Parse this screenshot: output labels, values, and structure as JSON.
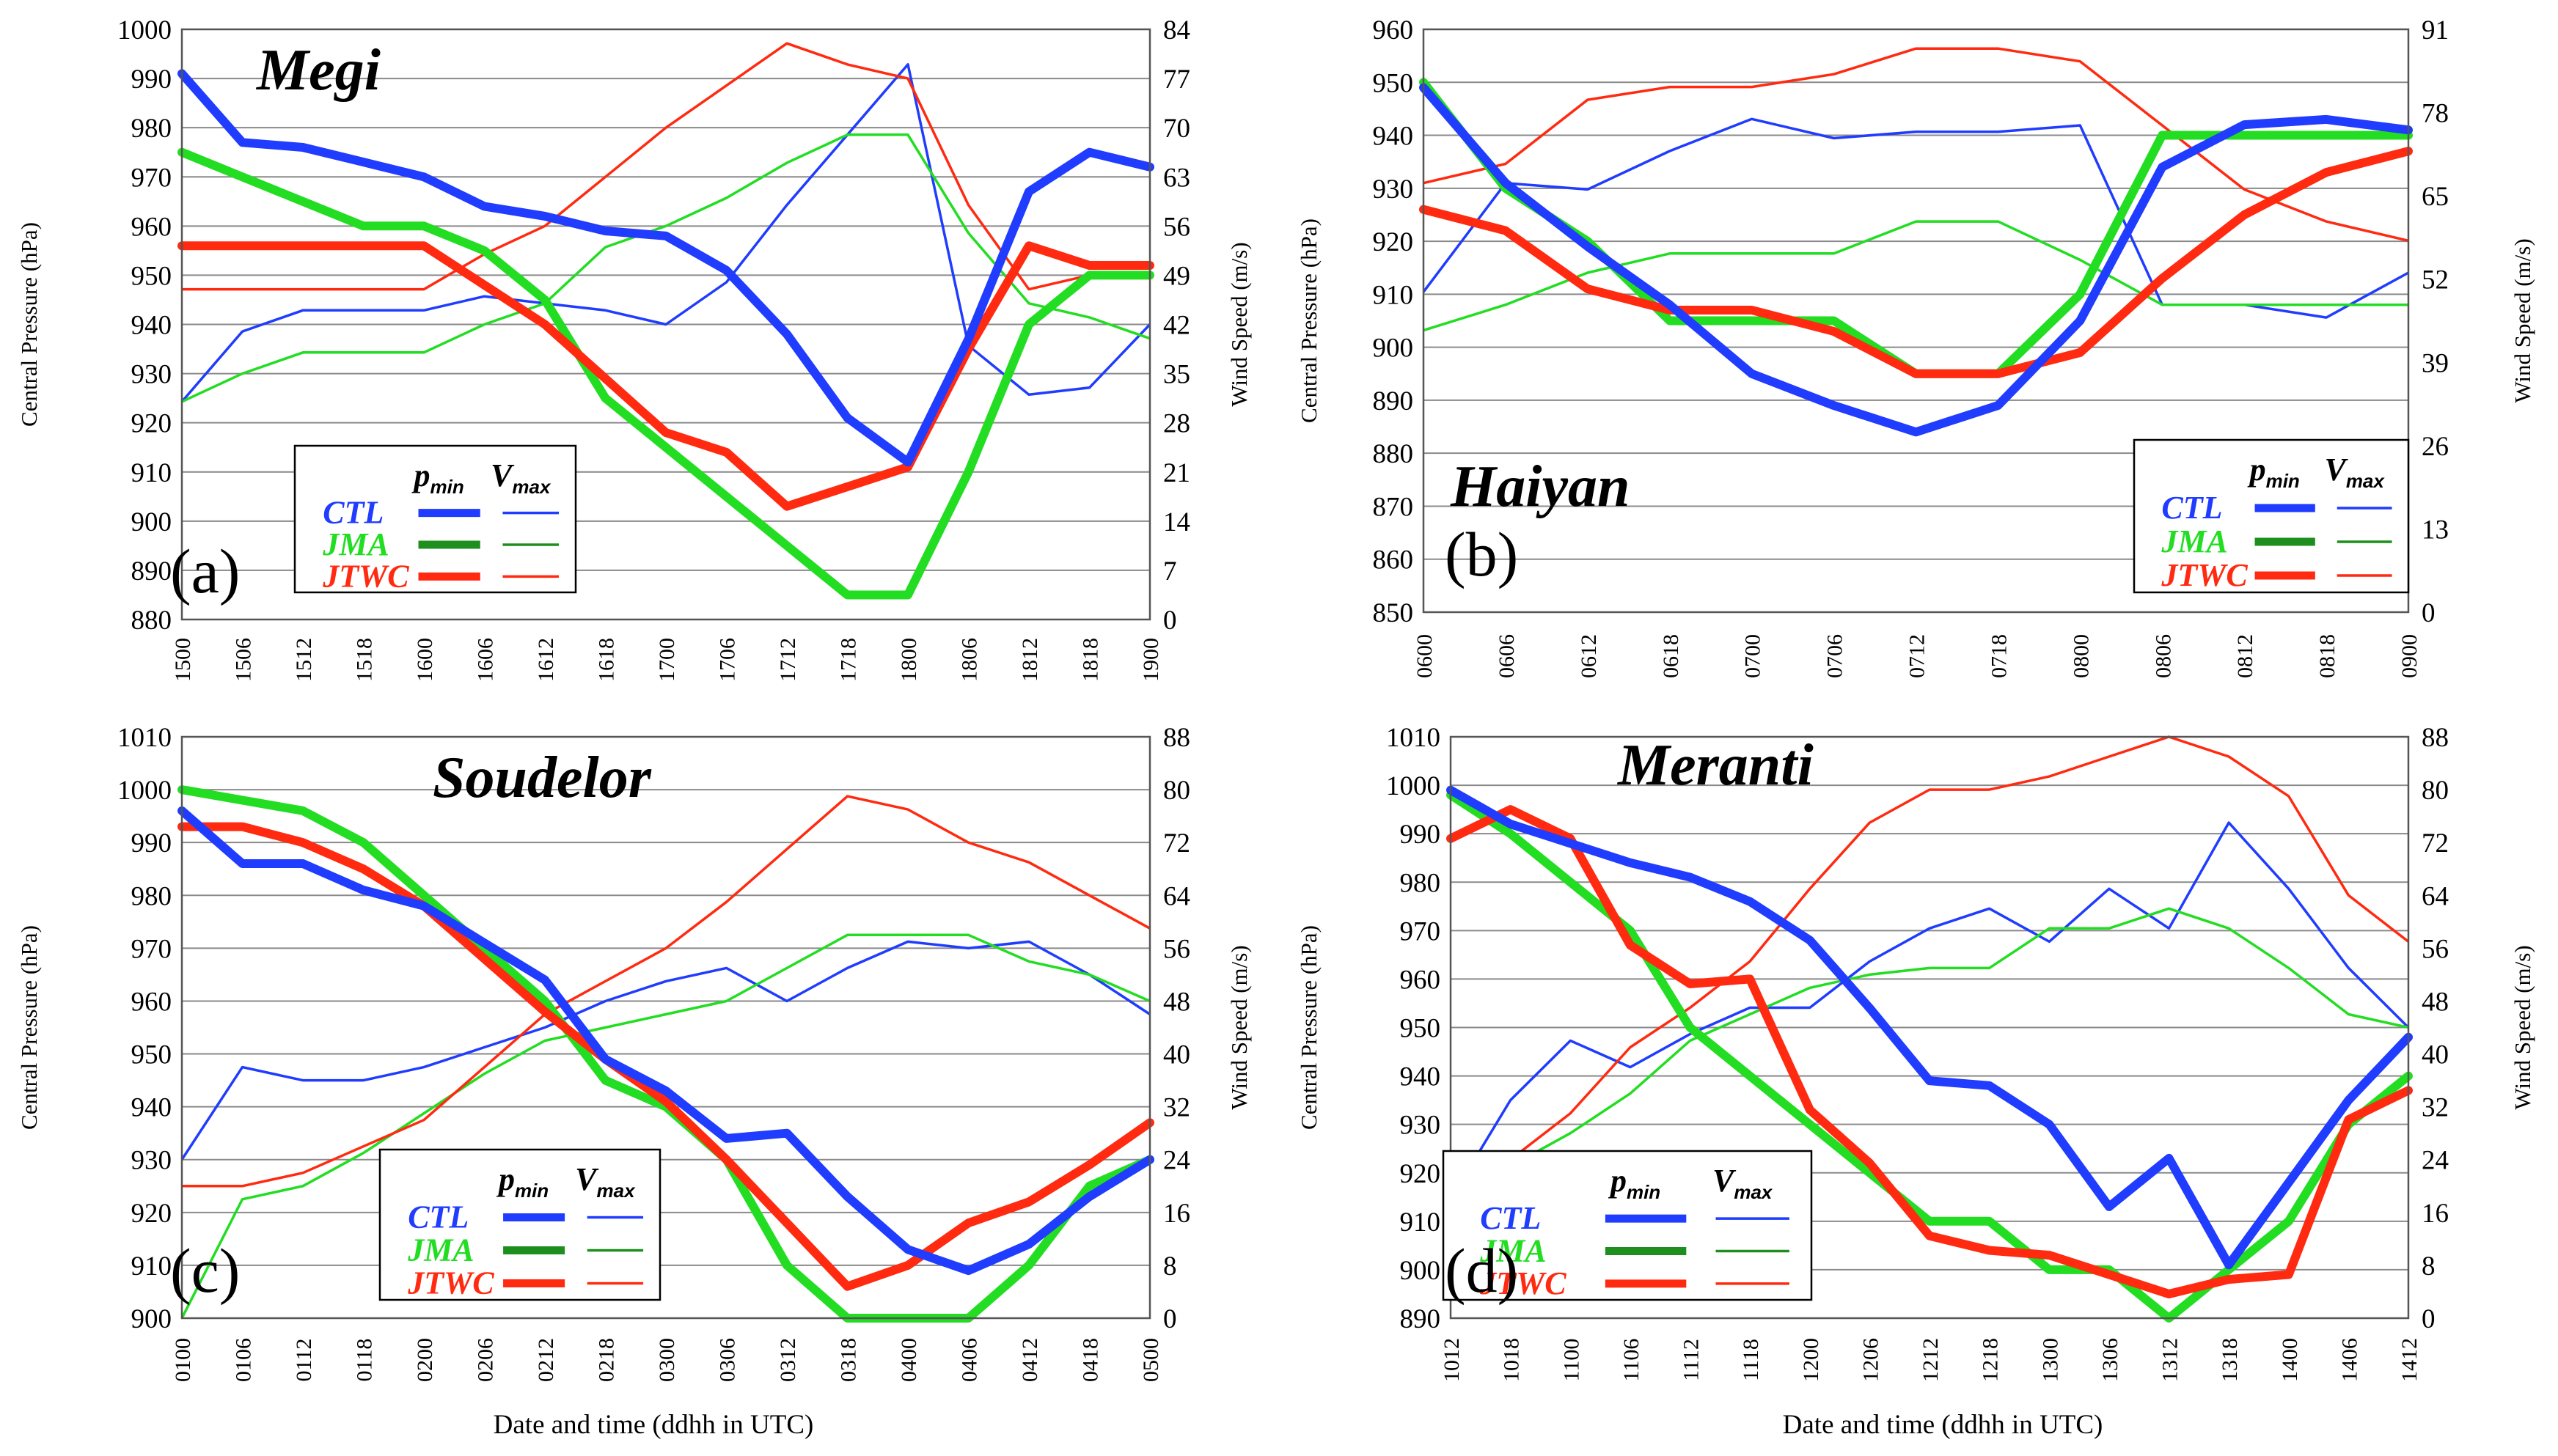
{
  "figure": {
    "xlabel": "Date and time (ddhh in UTC)"
  },
  "legend": {
    "p_main": "p",
    "p_sub": "min",
    "v_main": "V",
    "v_sub": "max"
  },
  "colors": {
    "CTL": "#1f3cff",
    "JMA": "#22dd22",
    "JTWC": "#ff2a10",
    "legend_JMA": "#1e8f1e"
  },
  "chart_data": [
    {
      "type": "line",
      "panel": "(a)",
      "title": "Megi",
      "categories": [
        "1500",
        "1506",
        "1512",
        "1518",
        "1600",
        "1606",
        "1612",
        "1618",
        "1700",
        "1706",
        "1712",
        "1718",
        "1800",
        "1806",
        "1812",
        "1818",
        "1900"
      ],
      "ylabel": "Central Pressure (hPa)",
      "y2label": "Wind Speed (m/s)",
      "ylim": [
        880,
        1000
      ],
      "yticks": [
        880,
        890,
        900,
        910,
        920,
        930,
        940,
        950,
        960,
        970,
        980,
        990,
        1000
      ],
      "y2lim": [
        0,
        84
      ],
      "y2ticks": [
        0,
        7,
        14,
        21,
        28,
        35,
        42,
        49,
        56,
        63,
        70,
        77,
        84
      ],
      "legend_position": "lower-left",
      "pmin_series": [
        {
          "name": "CTL",
          "values": [
            991,
            977,
            976,
            973,
            970,
            964,
            962,
            959,
            958,
            951,
            938,
            921,
            912,
            937,
            967,
            975,
            972
          ]
        },
        {
          "name": "JMA",
          "values": [
            975,
            970,
            965,
            960,
            960,
            955,
            945,
            925,
            915,
            905,
            895,
            885,
            885,
            910,
            940,
            950,
            950
          ]
        },
        {
          "name": "JTWC",
          "values": [
            956,
            956,
            956,
            956,
            956,
            948,
            940,
            929,
            918,
            914,
            903,
            907,
            911,
            935,
            956,
            952,
            952
          ]
        }
      ],
      "vmax_series": [
        {
          "name": "CTL",
          "values": [
            31,
            41,
            44,
            44,
            44,
            46,
            45,
            44,
            42,
            48,
            59,
            69,
            79,
            39,
            32,
            33,
            42
          ]
        },
        {
          "name": "JMA",
          "values": [
            31,
            35,
            38,
            38,
            38,
            42,
            45,
            53,
            56,
            60,
            65,
            69,
            69,
            55,
            45,
            43,
            40
          ]
        },
        {
          "name": "JTWC",
          "values": [
            47,
            47,
            47,
            47,
            47,
            52,
            56,
            63,
            70,
            76,
            82,
            79,
            77,
            59,
            47,
            49,
            49
          ]
        }
      ]
    },
    {
      "type": "line",
      "panel": "(b)",
      "title": "Haiyan",
      "categories": [
        "0600",
        "0606",
        "0612",
        "0618",
        "0700",
        "0706",
        "0712",
        "0718",
        "0800",
        "0806",
        "0812",
        "0818",
        "0900"
      ],
      "ylabel": "Central Pressure (hPa)",
      "y2label": "Wind Speed (m/s)",
      "ylim": [
        850,
        960
      ],
      "yticks": [
        850,
        860,
        870,
        880,
        890,
        900,
        910,
        920,
        930,
        940,
        950,
        960
      ],
      "y2lim": [
        0,
        91
      ],
      "y2ticks": [
        0,
        13,
        26,
        39,
        52,
        65,
        78,
        91
      ],
      "legend_position": "lower-right",
      "pmin_series": [
        {
          "name": "CTL",
          "values": [
            949,
            931,
            919,
            908,
            895,
            889,
            884,
            889,
            905,
            934,
            942,
            943,
            941
          ]
        },
        {
          "name": "JMA",
          "values": [
            950,
            930,
            920,
            905,
            905,
            905,
            895,
            895,
            910,
            940,
            940,
            940,
            940
          ]
        },
        {
          "name": "JTWC",
          "values": [
            926,
            922,
            911,
            907,
            907,
            903,
            895,
            895,
            899,
            913,
            925,
            933,
            937
          ]
        }
      ],
      "vmax_series": [
        {
          "name": "CTL",
          "values": [
            50,
            67,
            66,
            72,
            77,
            74,
            75,
            75,
            76,
            48,
            48,
            46,
            53
          ]
        },
        {
          "name": "JMA",
          "values": [
            44,
            48,
            53,
            56,
            56,
            56,
            61,
            61,
            55,
            48,
            48,
            48,
            48
          ]
        },
        {
          "name": "JTWC",
          "values": [
            67,
            70,
            80,
            82,
            82,
            84,
            88,
            88,
            86,
            76,
            66,
            61,
            58
          ]
        }
      ]
    },
    {
      "type": "line",
      "panel": "(c)",
      "title": "Soudelor",
      "categories": [
        "0100",
        "0106",
        "0112",
        "0118",
        "0200",
        "0206",
        "0212",
        "0218",
        "0300",
        "0306",
        "0312",
        "0318",
        "0400",
        "0406",
        "0412",
        "0418",
        "0500"
      ],
      "ylabel": "Central Pressure (hPa)",
      "y2label": "Wind Speed (m/s)",
      "ylim": [
        900,
        1010
      ],
      "yticks": [
        900,
        910,
        920,
        930,
        940,
        950,
        960,
        970,
        980,
        990,
        1000,
        1010
      ],
      "y2lim": [
        0,
        88
      ],
      "y2ticks": [
        0,
        8,
        16,
        24,
        32,
        40,
        48,
        56,
        64,
        72,
        80,
        88
      ],
      "legend_position": "lower-left",
      "pmin_series": [
        {
          "name": "CTL",
          "values": [
            996,
            986,
            986,
            981,
            978,
            971,
            964,
            949,
            943,
            934,
            935,
            923,
            913,
            909,
            914,
            923,
            930
          ]
        },
        {
          "name": "JMA",
          "values": [
            1000,
            998,
            996,
            990,
            980,
            970,
            960,
            945,
            940,
            930,
            910,
            900,
            900,
            900,
            910,
            925,
            930
          ]
        },
        {
          "name": "JTWC",
          "values": [
            993,
            993,
            990,
            985,
            978,
            968,
            958,
            949,
            941,
            930,
            918,
            906,
            910,
            918,
            922,
            929,
            937
          ]
        }
      ],
      "vmax_series": [
        {
          "name": "CTL",
          "values": [
            24,
            38,
            36,
            36,
            38,
            41,
            44,
            48,
            51,
            53,
            48,
            53,
            57,
            56,
            57,
            52,
            46
          ]
        },
        {
          "name": "JMA",
          "values": [
            0,
            18,
            20,
            25,
            31,
            37,
            42,
            44,
            46,
            48,
            53,
            58,
            58,
            58,
            54,
            52,
            48
          ]
        },
        {
          "name": "JTWC",
          "values": [
            20,
            20,
            22,
            26,
            30,
            38,
            46,
            51,
            56,
            63,
            71,
            79,
            77,
            72,
            69,
            64,
            59
          ]
        }
      ]
    },
    {
      "type": "line",
      "panel": "(d)",
      "title": "Meranti",
      "categories": [
        "1012",
        "1018",
        "1100",
        "1106",
        "1112",
        "1118",
        "1200",
        "1206",
        "1212",
        "1218",
        "1300",
        "1306",
        "1312",
        "1318",
        "1400",
        "1406",
        "1412"
      ],
      "ylabel": "Central Pressure (hPa)",
      "y2label": "Wind Speed (m/s)",
      "ylim": [
        890,
        1010
      ],
      "yticks": [
        890,
        900,
        910,
        920,
        930,
        940,
        950,
        960,
        970,
        980,
        990,
        1000,
        1010
      ],
      "y2lim": [
        0,
        88
      ],
      "y2ticks": [
        0,
        8,
        16,
        24,
        32,
        40,
        48,
        56,
        64,
        72,
        80,
        88
      ],
      "legend_position": "lower-left",
      "pmin_series": [
        {
          "name": "CTL",
          "values": [
            999,
            992,
            988,
            984,
            981,
            976,
            968,
            954,
            939,
            938,
            930,
            913,
            923,
            901,
            918,
            935,
            948
          ]
        },
        {
          "name": "JMA",
          "values": [
            998,
            990,
            980,
            970,
            950,
            940,
            930,
            920,
            910,
            910,
            900,
            900,
            890,
            900,
            910,
            930,
            940
          ]
        },
        {
          "name": "JTWC",
          "values": [
            989,
            995,
            989,
            967,
            959,
            960,
            933,
            922,
            907,
            904,
            903,
            899,
            895,
            898,
            899,
            931,
            937
          ]
        }
      ],
      "vmax_series": [
        {
          "name": "CTL",
          "values": [
            18,
            33,
            42,
            38,
            43,
            47,
            47,
            54,
            59,
            62,
            57,
            65,
            59,
            75,
            65,
            53,
            44
          ]
        },
        {
          "name": "JMA",
          "values": [
            18,
            23,
            28,
            34,
            42,
            46,
            50,
            52,
            53,
            53,
            59,
            59,
            62,
            59,
            53,
            46,
            44
          ]
        },
        {
          "name": "JTWC",
          "values": [
            21,
            24,
            31,
            41,
            47,
            54,
            65,
            75,
            80,
            80,
            82,
            85,
            88,
            85,
            79,
            64,
            57
          ]
        }
      ]
    }
  ]
}
